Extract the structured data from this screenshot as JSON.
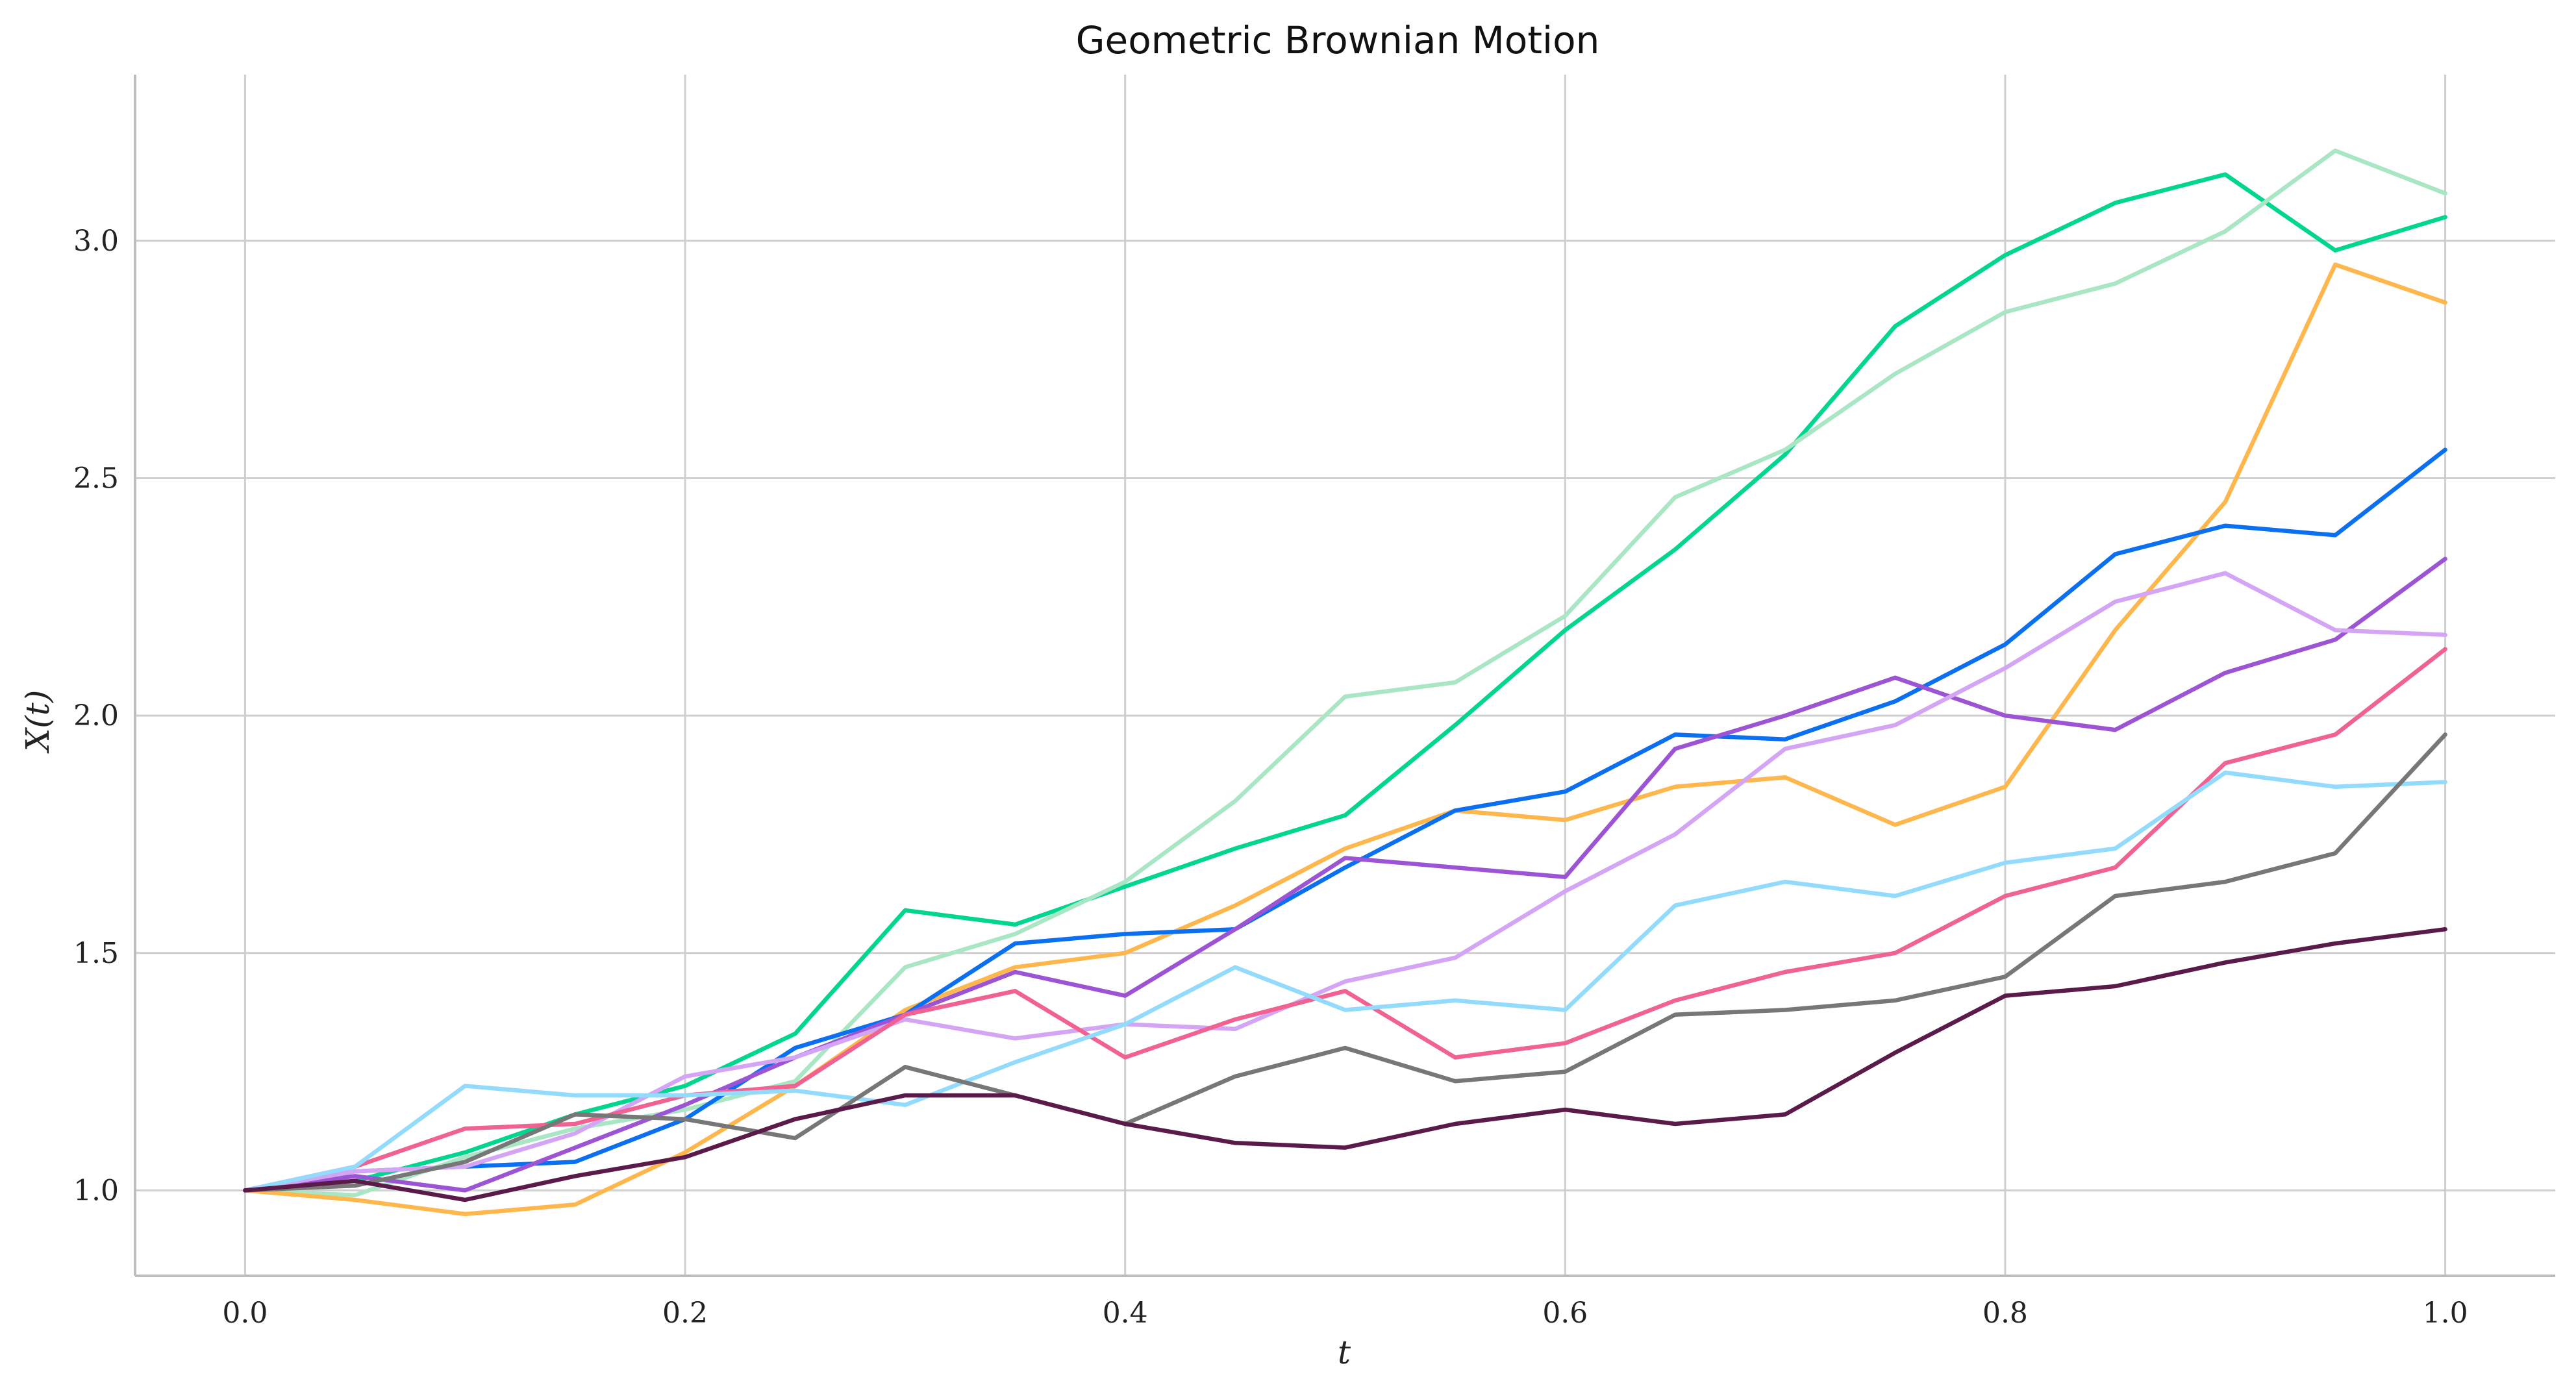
{
  "chart_data": {
    "type": "line",
    "title": "Geometric Brownian Motion",
    "xlabel": "t",
    "ylabel": "X(t)",
    "xlim": [
      -0.05,
      1.05
    ],
    "ylim": [
      0.82,
      3.35
    ],
    "x_ticks": [
      0.0,
      0.2,
      0.4,
      0.6,
      0.8,
      1.0
    ],
    "x_tick_labels": [
      "0.0",
      "0.2",
      "0.4",
      "0.6",
      "0.8",
      "1.0"
    ],
    "y_ticks": [
      1.0,
      1.5,
      2.0,
      2.5,
      3.0
    ],
    "y_tick_labels": [
      "1.0",
      "1.5",
      "2.0",
      "2.5",
      "3.0"
    ],
    "grid": true,
    "x": [
      0.0,
      0.05,
      0.1,
      0.15,
      0.2,
      0.25,
      0.3,
      0.35,
      0.4,
      0.45,
      0.5,
      0.55,
      0.6,
      0.65,
      0.7,
      0.75,
      0.8,
      0.85,
      0.9,
      0.95,
      1.0
    ],
    "series": [
      {
        "color": "#00d68f",
        "values": [
          1.0,
          1.02,
          1.08,
          1.16,
          1.22,
          1.33,
          1.59,
          1.56,
          1.64,
          1.72,
          1.79,
          1.98,
          2.18,
          2.35,
          2.55,
          2.82,
          2.97,
          3.08,
          3.14,
          2.98,
          3.05
        ]
      },
      {
        "color": "#a8e6c4",
        "values": [
          1.0,
          0.99,
          1.07,
          1.13,
          1.17,
          1.23,
          1.47,
          1.54,
          1.65,
          1.82,
          2.04,
          2.07,
          2.21,
          2.46,
          2.56,
          2.72,
          2.85,
          2.91,
          3.02,
          3.19,
          3.1
        ]
      },
      {
        "color": "#ffb74d",
        "values": [
          1.0,
          0.98,
          0.95,
          0.97,
          1.08,
          1.22,
          1.38,
          1.47,
          1.5,
          1.6,
          1.72,
          1.8,
          1.78,
          1.85,
          1.87,
          1.77,
          1.85,
          2.18,
          2.45,
          2.95,
          2.87
        ]
      },
      {
        "color": "#0a6ff0",
        "values": [
          1.0,
          1.04,
          1.05,
          1.06,
          1.15,
          1.3,
          1.37,
          1.52,
          1.54,
          1.55,
          1.68,
          1.8,
          1.84,
          1.96,
          1.95,
          2.03,
          2.15,
          2.34,
          2.4,
          2.38,
          2.56
        ]
      },
      {
        "color": "#9c54d4",
        "values": [
          1.0,
          1.03,
          1.0,
          1.09,
          1.18,
          1.28,
          1.37,
          1.46,
          1.41,
          1.55,
          1.7,
          1.68,
          1.66,
          1.93,
          2.0,
          2.08,
          2.0,
          1.97,
          2.09,
          2.16,
          2.33
        ]
      },
      {
        "color": "#d4a5f5",
        "values": [
          1.0,
          1.04,
          1.05,
          1.12,
          1.24,
          1.28,
          1.36,
          1.32,
          1.35,
          1.34,
          1.44,
          1.49,
          1.63,
          1.75,
          1.93,
          1.98,
          2.1,
          2.24,
          2.3,
          2.18,
          2.17
        ]
      },
      {
        "color": "#f06292",
        "values": [
          1.0,
          1.05,
          1.13,
          1.14,
          1.2,
          1.22,
          1.37,
          1.42,
          1.28,
          1.36,
          1.42,
          1.28,
          1.31,
          1.4,
          1.46,
          1.5,
          1.62,
          1.68,
          1.9,
          1.96,
          2.14
        ]
      },
      {
        "color": "#93dbfc",
        "values": [
          1.0,
          1.05,
          1.22,
          1.2,
          1.2,
          1.21,
          1.18,
          1.27,
          1.35,
          1.47,
          1.38,
          1.4,
          1.38,
          1.6,
          1.65,
          1.62,
          1.69,
          1.72,
          1.88,
          1.85,
          1.86
        ]
      },
      {
        "color": "#777777",
        "values": [
          1.0,
          1.01,
          1.06,
          1.16,
          1.15,
          1.11,
          1.26,
          1.2,
          1.14,
          1.24,
          1.3,
          1.23,
          1.25,
          1.37,
          1.38,
          1.4,
          1.45,
          1.62,
          1.65,
          1.71,
          1.96
        ]
      },
      {
        "color": "#5a1a4a",
        "values": [
          1.0,
          1.02,
          0.98,
          1.03,
          1.07,
          1.15,
          1.2,
          1.2,
          1.14,
          1.1,
          1.09,
          1.14,
          1.17,
          1.14,
          1.16,
          1.29,
          1.41,
          1.43,
          1.48,
          1.52,
          1.55
        ]
      }
    ]
  }
}
